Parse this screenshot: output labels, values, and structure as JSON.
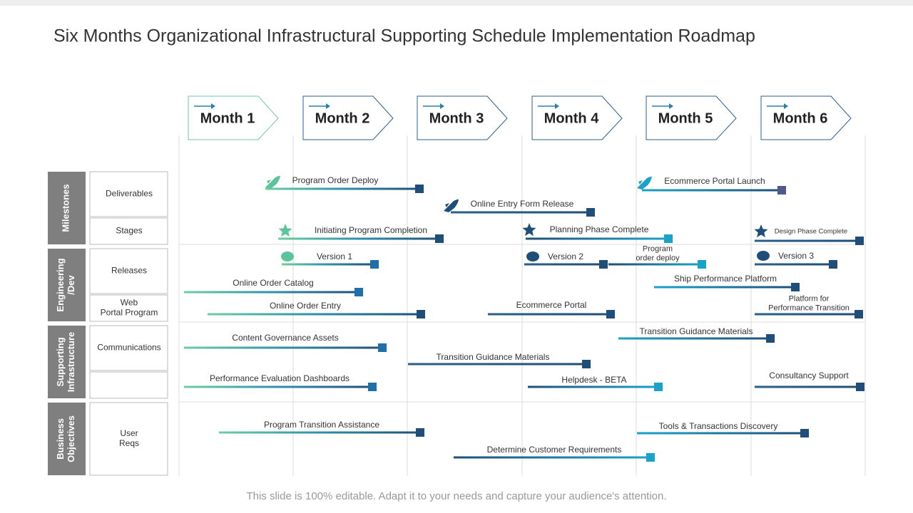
{
  "header": {
    "title": "Six Months Organizational Infrastructural Supporting Schedule Implementation Roadmap"
  },
  "months": [
    "Month 1",
    "Month 2",
    "Month 3",
    "Month 4",
    "Month 5",
    "Month 6"
  ],
  "groups": [
    {
      "label": [
        "Milestones"
      ],
      "rows": [
        [
          "Deliverables"
        ],
        [
          "Stages"
        ]
      ]
    },
    {
      "label": [
        "Engineering",
        "/Dev"
      ],
      "rows": [
        [
          "Releases"
        ],
        [
          "Web",
          "Portal Program"
        ]
      ]
    },
    {
      "label": [
        "Supporting",
        "Infrastructure"
      ],
      "rows": [
        [
          "Communications"
        ]
      ]
    },
    {
      "label": [
        "Business",
        "Objectives"
      ],
      "rows": [
        [
          "User",
          "Reqs"
        ]
      ]
    }
  ],
  "tasks": [
    {
      "label": [
        "Program Order Deploy"
      ]
    },
    {
      "label": [
        "Online Entry Form Release"
      ]
    },
    {
      "label": [
        "Initiating Program Completion"
      ]
    },
    {
      "label": [
        "Planning Phase Complete"
      ]
    },
    {
      "label": [
        "Ecommerce Portal Launch"
      ]
    },
    {
      "label": [
        "Design Phase Complete"
      ]
    },
    {
      "label": [
        "Version 1"
      ]
    },
    {
      "label": [
        "Version 2"
      ]
    },
    {
      "label": [
        "Program",
        "order deploy"
      ]
    },
    {
      "label": [
        "Version 3"
      ]
    },
    {
      "label": [
        "Online Order Catalog"
      ]
    },
    {
      "label": [
        "Ship Performance Platform"
      ]
    },
    {
      "label": [
        "Online Order Entry"
      ]
    },
    {
      "label": [
        "Ecommerce Portal"
      ]
    },
    {
      "label": [
        "Platform for",
        "Performance Transition"
      ]
    },
    {
      "label": [
        "Content Governance Assets"
      ]
    },
    {
      "label": [
        "Transition Guidance Materials"
      ]
    },
    {
      "label": [
        "Transition Guidance Materials"
      ]
    },
    {
      "label": [
        "Performance Evaluation Dashboards"
      ]
    },
    {
      "label": [
        "Helpdesk - BETA"
      ]
    },
    {
      "label": [
        "Consultancy Support"
      ]
    },
    {
      "label": [
        "Program Transition Assistance"
      ]
    },
    {
      "label": [
        "Tools & Transactions Discovery"
      ]
    },
    {
      "label": [
        "Determine Customer Requirements"
      ]
    }
  ],
  "footer": "This slide is 100% editable. Adapt it to your needs and capture your audience's attention."
}
